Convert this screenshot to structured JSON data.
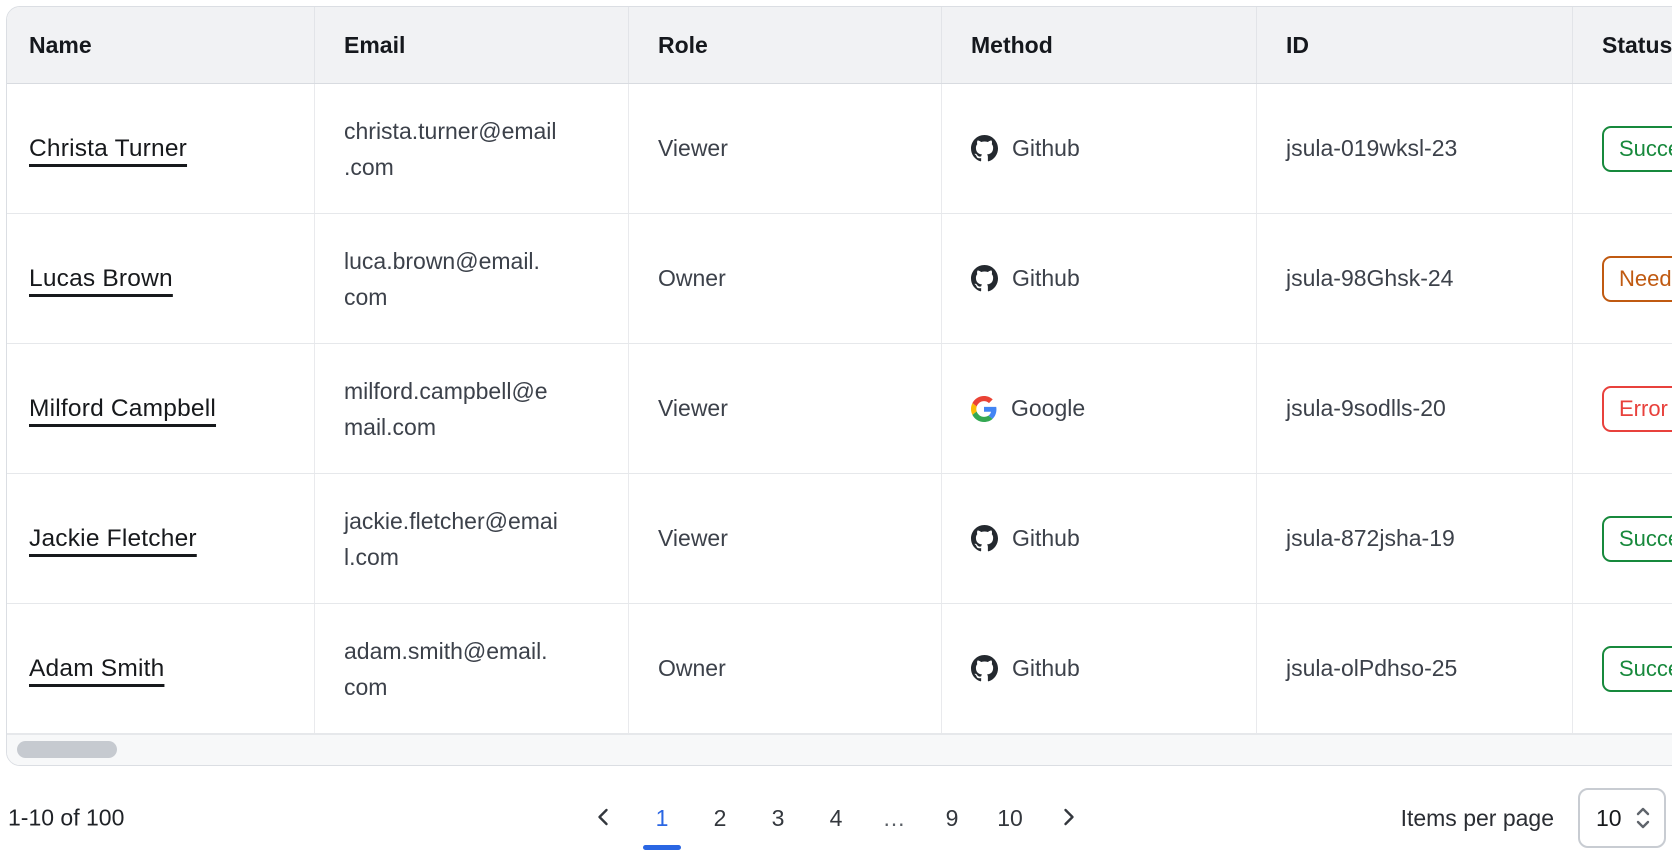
{
  "table": {
    "columns": [
      {
        "key": "name",
        "label": "Name"
      },
      {
        "key": "email",
        "label": "Email"
      },
      {
        "key": "role",
        "label": "Role"
      },
      {
        "key": "method",
        "label": "Method"
      },
      {
        "key": "id",
        "label": "ID"
      },
      {
        "key": "status",
        "label": "Status"
      }
    ],
    "rows": [
      {
        "name": "Christa Turner",
        "email": "christa.turner@email.com",
        "email_lines": [
          "christa.turner@email",
          ".com"
        ],
        "role": "Viewer",
        "method": "Github",
        "method_icon": "github-icon",
        "id": "jsula-019wksl-23",
        "status": {
          "label": "Success",
          "variant": "success"
        }
      },
      {
        "name": "Lucas Brown",
        "email": "luca.brown@email.com",
        "email_lines": [
          "luca.brown@email.",
          "com"
        ],
        "role": "Owner",
        "method": "Github",
        "method_icon": "github-icon",
        "id": "jsula-98Ghsk-24",
        "status": {
          "label": "Needs attention",
          "variant": "warning"
        }
      },
      {
        "name": "Milford Campbell",
        "email": "milford.campbell@email.com",
        "email_lines": [
          "milford.campbell@e",
          "mail.com"
        ],
        "role": "Viewer",
        "method": "Google",
        "method_icon": "google-icon",
        "id": "jsula-9sodlls-20",
        "status": {
          "label": "Error",
          "variant": "error"
        }
      },
      {
        "name": "Jackie Fletcher",
        "email": "jackie.fletcher@email.com",
        "email_lines": [
          "jackie.fletcher@emai",
          "l.com"
        ],
        "role": "Viewer",
        "method": "Github",
        "method_icon": "github-icon",
        "id": "jsula-872jsha-19",
        "status": {
          "label": "Success",
          "variant": "success"
        }
      },
      {
        "name": "Adam Smith",
        "email": "adam.smith@email.com",
        "email_lines": [
          "adam.smith@email.",
          "com"
        ],
        "role": "Owner",
        "method": "Github",
        "method_icon": "github-icon",
        "id": "jsula-olPdhso-25",
        "status": {
          "label": "Success",
          "variant": "success"
        }
      }
    ]
  },
  "pagination": {
    "range_label": "1-10 of 100",
    "pages": [
      "1",
      "2",
      "3",
      "4",
      "…",
      "9",
      "10"
    ],
    "current_page": "1",
    "prev_icon": "chevron-left-icon",
    "next_icon": "chevron-right-icon",
    "items_per_page_label": "Items per page",
    "items_per_page_value": "10",
    "items_per_page_icon": "up-down-chevrons-icon"
  },
  "scrollbar": {
    "orientation": "horizontal",
    "thumb_position": "left"
  },
  "colors": {
    "accent_blue": "#2a66e3",
    "success_green": "#17893c",
    "warning_orange": "#c05a11",
    "error_red": "#e8413c",
    "header_bg": "#f1f2f4",
    "grid_border": "#e2e4e8"
  }
}
